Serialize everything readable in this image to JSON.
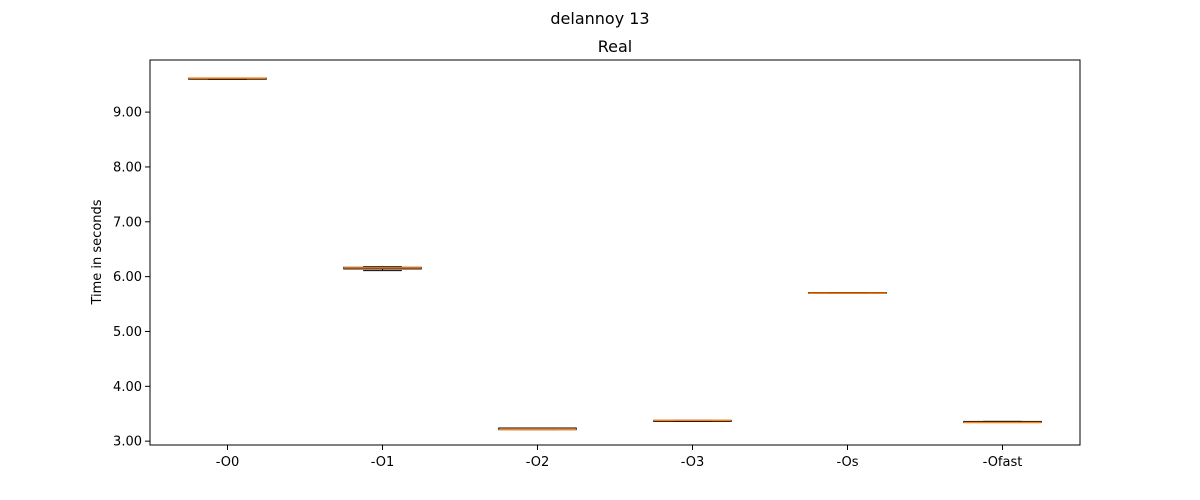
{
  "figure": {
    "suptitle": "delannoy 13"
  },
  "chart_data": {
    "type": "box",
    "title": "Real",
    "xlabel": "",
    "ylabel": "Time in seconds",
    "ylim": [
      2.93,
      9.95
    ],
    "yticks": [
      "3.00",
      "4.00",
      "5.00",
      "6.00",
      "7.00",
      "8.00",
      "9.00"
    ],
    "grid": false,
    "categories": [
      "-O0",
      "-O1",
      "-O2",
      "-O3",
      "-Os",
      "-Ofast"
    ],
    "series": [
      {
        "q1": 9.6,
        "median": 9.62,
        "q3": 9.62,
        "whisker_low": 9.6,
        "whisker_high": 9.62
      },
      {
        "q1": 6.14,
        "median": 6.16,
        "q3": 6.17,
        "whisker_low": 6.11,
        "whisker_high": 6.18
      },
      {
        "q1": 3.21,
        "median": 3.21,
        "q3": 3.24,
        "whisker_low": 3.21,
        "whisker_high": 3.24
      },
      {
        "q1": 3.36,
        "median": 3.38,
        "q3": 3.38,
        "whisker_low": 3.36,
        "whisker_high": 3.38
      },
      {
        "q1": 5.7,
        "median": 5.7,
        "q3": 5.71,
        "whisker_low": 5.7,
        "whisker_high": 5.71
      },
      {
        "q1": 3.34,
        "median": 3.34,
        "q3": 3.36,
        "whisker_low": 3.34,
        "whisker_high": 3.36
      }
    ],
    "colors": {
      "box": "#000000",
      "median": "#ff7f0e",
      "axes": "#000000"
    }
  }
}
